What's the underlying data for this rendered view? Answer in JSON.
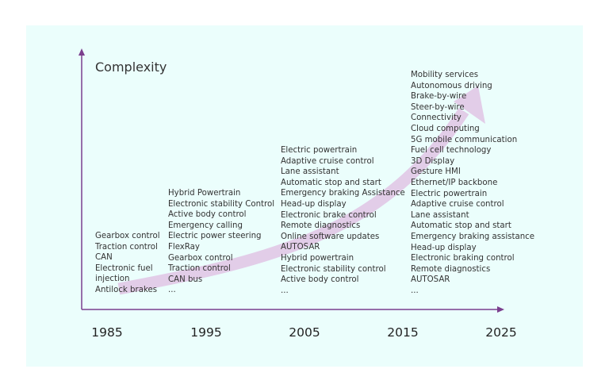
{
  "colors": {
    "background": "#ebfefc",
    "axis": "#7b3f8e",
    "arrow": "#e2cde8"
  },
  "y_axis_label": "Complexity",
  "years": [
    "1985",
    "1995",
    "2005",
    "2015",
    "2025"
  ],
  "columns": [
    {
      "year": "1985",
      "items": [
        "Gearbox control",
        "Traction control",
        "CAN",
        "Electronic fuel",
        "injection",
        "Antilock brakes"
      ]
    },
    {
      "year": "1995",
      "items": [
        "Hybrid Powertrain",
        "Electronic stability Control",
        "Active body control",
        "Emergency calling",
        "Electric power steering",
        "FlexRay",
        "Gearbox control",
        "Traction control",
        "CAN bus",
        "..."
      ]
    },
    {
      "year": "2005",
      "items": [
        "Electric powertrain",
        "Adaptive cruise control",
        "Lane assistant",
        "Automatic stop and start",
        "Emergency braking Assistance",
        "Head-up display",
        "Electronic brake control",
        "Remote diagnostics",
        "Online software updates",
        "AUTOSAR",
        "Hybrid powertrain",
        "Electronic stability control",
        "Active body control",
        "..."
      ]
    },
    {
      "year": "2015",
      "items": [
        "Mobility services",
        "Autonomous driving",
        "Brake-by-wire",
        "Steer-by-wire",
        "Connectivity",
        "Cloud computing",
        "5G mobile communication",
        "Fuel cell technology",
        "3D Display",
        "Gesture HMI",
        "Ethernet/IP backbone",
        "Electric powertrain",
        "Adaptive cruise control",
        "Lane assistant",
        "Automatic stop and start",
        "Emergency braking assistance",
        "Head-up display",
        "Electronic braking control",
        "Remote diagnostics",
        "AUTOSAR",
        "..."
      ]
    }
  ]
}
